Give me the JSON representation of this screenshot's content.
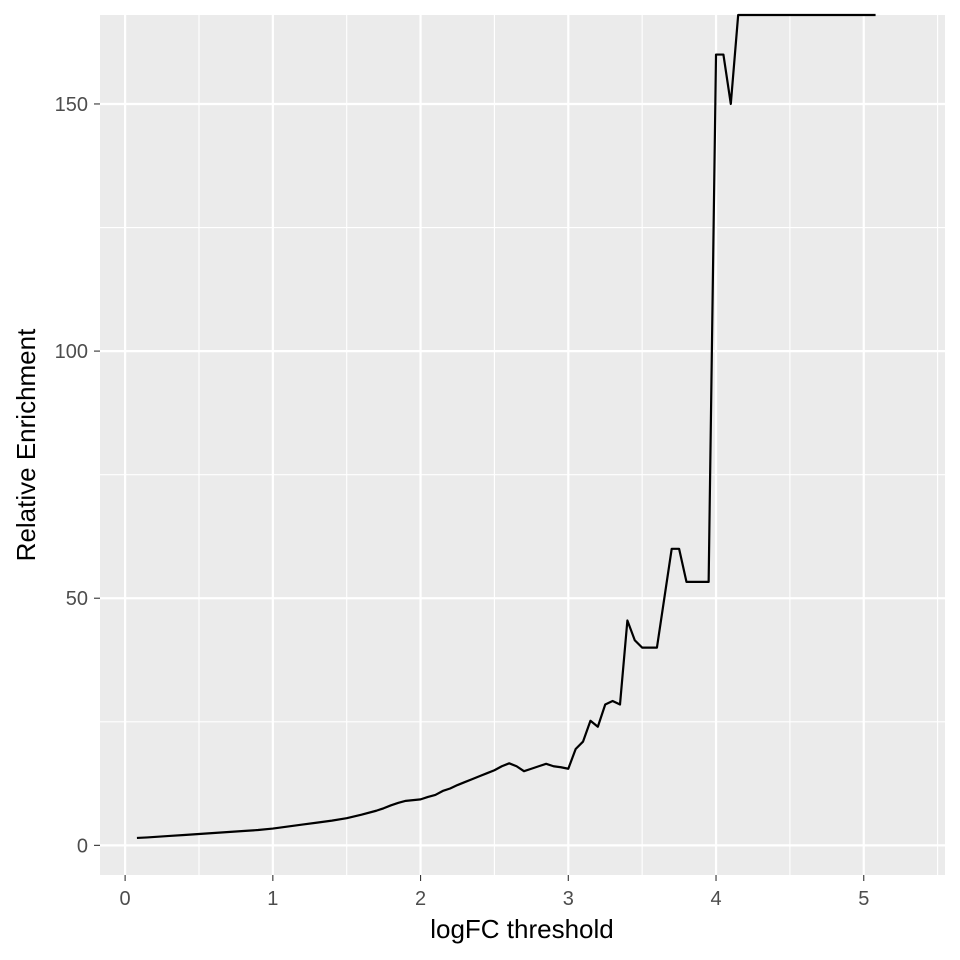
{
  "chart_data": {
    "type": "line",
    "xlabel": "logFC threshold",
    "ylabel": "Relative Enrichment",
    "xlim": [
      -0.17,
      5.55
    ],
    "ylim": [
      -6,
      168
    ],
    "grid": true,
    "panel_background": "#ebebeb",
    "grid_color": "#ffffff",
    "line_color": "#000000",
    "x_ticks": [
      0,
      1,
      2,
      3,
      4,
      5
    ],
    "x_tick_labels": [
      "0",
      "1",
      "2",
      "3",
      "4",
      "5"
    ],
    "y_ticks": [
      0,
      50,
      100,
      150
    ],
    "y_tick_labels": [
      "0",
      "50",
      "100",
      "150"
    ],
    "series": [
      {
        "x": [
          0.08,
          0.15,
          0.2,
          0.3,
          0.4,
          0.5,
          0.6,
          0.7,
          0.8,
          0.9,
          1.0,
          1.1,
          1.2,
          1.3,
          1.4,
          1.5,
          1.6,
          1.7,
          1.75,
          1.8,
          1.85,
          1.9,
          2.0,
          2.05,
          2.1,
          2.15,
          2.2,
          2.25,
          2.3,
          2.35,
          2.4,
          2.45,
          2.5,
          2.55,
          2.6,
          2.65,
          2.7,
          2.75,
          2.8,
          2.85,
          2.9,
          2.95,
          3.0,
          3.05,
          3.1,
          3.15,
          3.2,
          3.25,
          3.3,
          3.35,
          3.4,
          3.45,
          3.5,
          3.55,
          3.6,
          3.65,
          3.7,
          3.75,
          3.8,
          3.85,
          3.9,
          3.95,
          4.0,
          4.05,
          4.1,
          4.15,
          4.2,
          4.3,
          4.5,
          4.7,
          4.9,
          5.08
        ],
        "y": [
          1.5,
          1.6,
          1.7,
          1.9,
          2.1,
          2.3,
          2.5,
          2.7,
          2.9,
          3.1,
          3.4,
          3.8,
          4.2,
          4.6,
          5.0,
          5.5,
          6.2,
          7.0,
          7.5,
          8.1,
          8.6,
          9.0,
          9.3,
          9.8,
          10.2,
          11.0,
          11.5,
          12.2,
          12.8,
          13.4,
          14.0,
          14.6,
          15.2,
          16.0,
          16.6,
          16.0,
          15.0,
          15.5,
          16.0,
          16.5,
          16.0,
          15.8,
          15.5,
          19.5,
          21.0,
          25.2,
          24.0,
          28.5,
          29.2,
          28.5,
          45.5,
          41.5,
          40.0,
          40.0,
          40.0,
          50.0,
          60.0,
          60.0,
          53.3,
          53.3,
          53.3,
          53.3,
          160.0,
          160.0,
          150.0,
          168.0,
          168.0,
          168.0,
          168.0,
          168.0,
          168.0,
          168.0
        ]
      }
    ]
  }
}
